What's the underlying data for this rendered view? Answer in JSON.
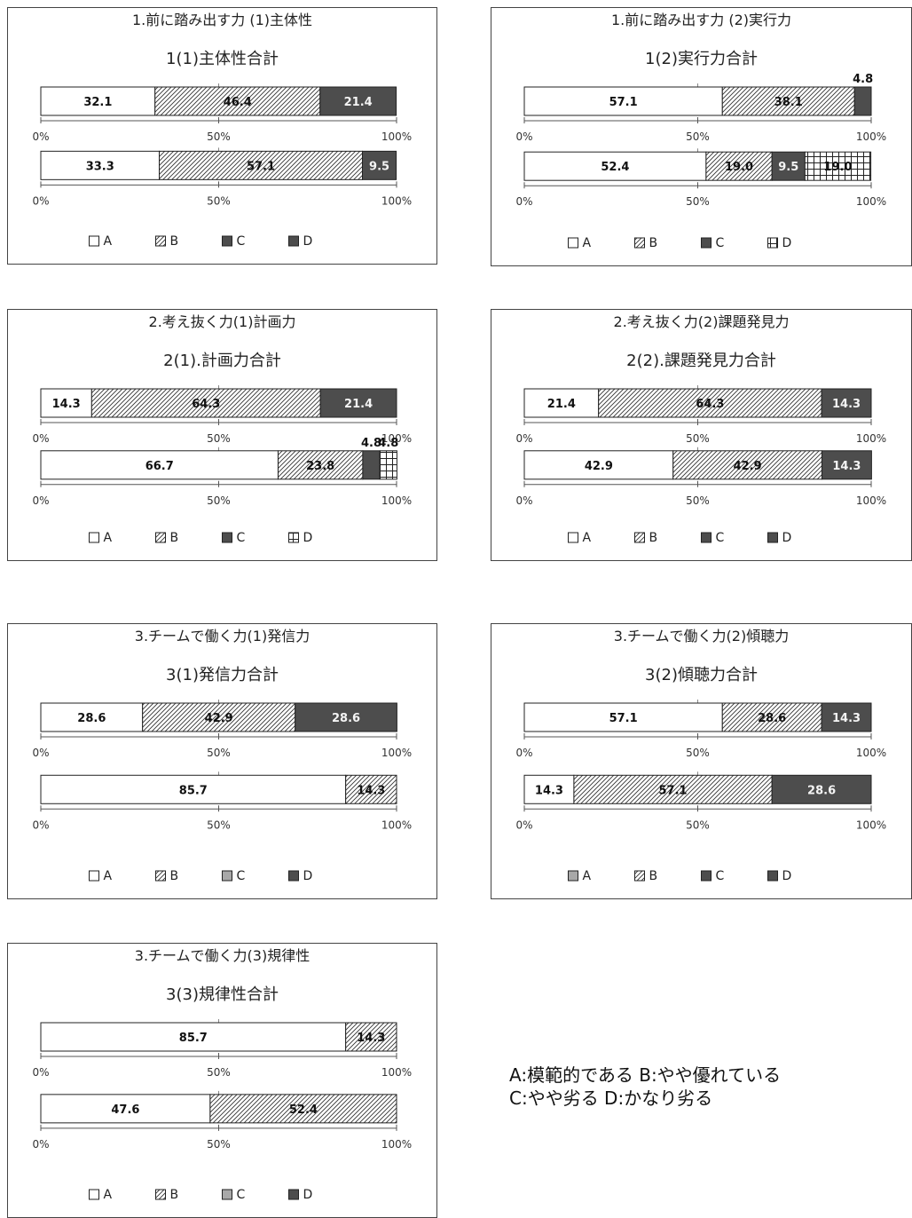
{
  "note": {
    "line1": "A:模範的である B:やや優れている",
    "line2": "C:やや劣る D:かなり劣る"
  },
  "chart_data": [
    {
      "type": "bar",
      "orientation": "horizontal-stacked-100",
      "header": "1.前に踏み出す力 (1)主体性",
      "title": "1(1)主体性合計",
      "series_names": [
        "A",
        "B",
        "C",
        "D"
      ],
      "legend_styles": [
        "white",
        "hatch",
        "dark",
        "dark"
      ],
      "ticks": [
        "0%",
        "50%",
        "100%"
      ],
      "bars": [
        {
          "values": [
            32.1,
            46.4,
            21.4,
            0
          ]
        },
        {
          "values": [
            33.3,
            57.1,
            9.5,
            0
          ]
        }
      ]
    },
    {
      "type": "bar",
      "orientation": "horizontal-stacked-100",
      "header": "1.前に踏み出す力 (2)実行力",
      "title": "1(2)実行力合計",
      "series_names": [
        "A",
        "B",
        "C",
        "D"
      ],
      "legend_styles": [
        "white",
        "hatch",
        "dark",
        "grid"
      ],
      "ticks": [
        "0%",
        "50%",
        "100%"
      ],
      "bars": [
        {
          "values": [
            57.1,
            38.1,
            4.8,
            0
          ]
        },
        {
          "values": [
            52.4,
            19.0,
            9.5,
            19.0
          ]
        }
      ]
    },
    {
      "type": "bar",
      "orientation": "horizontal-stacked-100",
      "header": "2.考え抜く力(1)計画力",
      "title": "2(1).計画力合計",
      "series_names": [
        "A",
        "B",
        "C",
        "D"
      ],
      "legend_styles": [
        "white",
        "hatch",
        "dark",
        "grid"
      ],
      "ticks": [
        "0%",
        "50%",
        "100%"
      ],
      "bars": [
        {
          "values": [
            14.3,
            64.3,
            21.4,
            0
          ]
        },
        {
          "values": [
            66.7,
            23.8,
            4.8,
            4.8
          ]
        }
      ]
    },
    {
      "type": "bar",
      "orientation": "horizontal-stacked-100",
      "header": "2.考え抜く力(2)課題発見力",
      "title": "2(2).課題発見力合計",
      "series_names": [
        "A",
        "B",
        "C",
        "D"
      ],
      "legend_styles": [
        "white",
        "hatch",
        "dark",
        "dark"
      ],
      "ticks": [
        "0%",
        "50%",
        "100%"
      ],
      "bars": [
        {
          "values": [
            21.4,
            64.3,
            14.3,
            0
          ]
        },
        {
          "values": [
            42.9,
            42.9,
            14.3,
            0
          ]
        }
      ]
    },
    {
      "type": "bar",
      "orientation": "horizontal-stacked-100",
      "header": "3.チームで働く力(1)発信力",
      "title": "3(1)発信力合計",
      "series_names": [
        "A",
        "B",
        "C",
        "D"
      ],
      "legend_styles": [
        "white",
        "hatch",
        "light",
        "dark"
      ],
      "ticks": [
        "0%",
        "50%",
        "100%"
      ],
      "bars": [
        {
          "values": [
            28.6,
            42.9,
            28.6,
            0
          ]
        },
        {
          "values": [
            85.7,
            14.3,
            0,
            0
          ]
        }
      ]
    },
    {
      "type": "bar",
      "orientation": "horizontal-stacked-100",
      "header": "3.チームで働く力(2)傾聴力",
      "title": "3(2)傾聴力合計",
      "series_names": [
        "A",
        "B",
        "C",
        "D"
      ],
      "legend_styles": [
        "light",
        "hatch",
        "dark",
        "dark"
      ],
      "ticks": [
        "0%",
        "50%",
        "100%"
      ],
      "bars": [
        {
          "values": [
            57.1,
            28.6,
            14.3,
            0
          ]
        },
        {
          "values": [
            14.3,
            57.1,
            28.6,
            0
          ]
        }
      ]
    },
    {
      "type": "bar",
      "orientation": "horizontal-stacked-100",
      "header": "3.チームで働く力(3)規律性",
      "title": "3(3)規律性合計",
      "series_names": [
        "A",
        "B",
        "C",
        "D"
      ],
      "legend_styles": [
        "white",
        "hatch",
        "light",
        "dark"
      ],
      "ticks": [
        "0%",
        "50%",
        "100%"
      ],
      "bars": [
        {
          "values": [
            85.7,
            14.3,
            0,
            0
          ]
        },
        {
          "values": [
            47.6,
            52.4,
            0,
            0
          ]
        }
      ]
    }
  ]
}
